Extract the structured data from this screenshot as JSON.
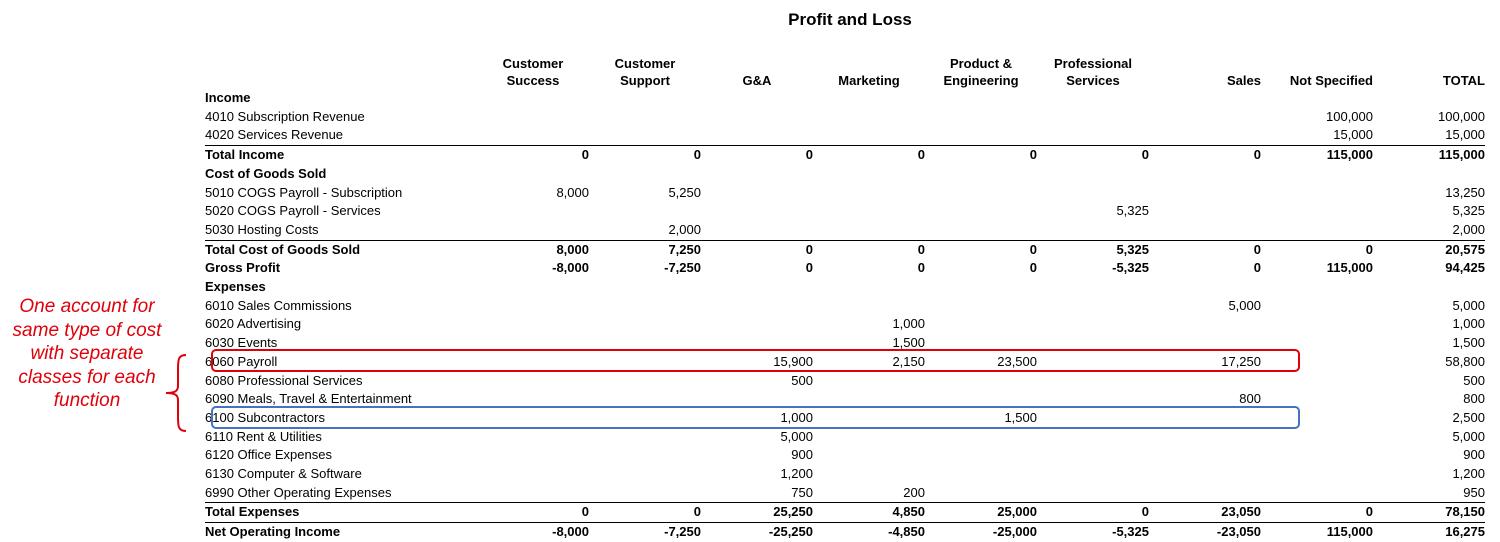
{
  "title": "Profit and Loss",
  "columns": [
    "Customer\nSuccess",
    "Customer\nSupport",
    "G&A",
    "Marketing",
    "Product &\nEngineering",
    "Professional\nServices",
    "Sales",
    "Not Specified",
    "TOTAL"
  ],
  "rows": [
    {
      "label": "Income",
      "type": "section",
      "values": [
        "",
        "",
        "",
        "",
        "",
        "",
        "",
        "",
        ""
      ]
    },
    {
      "label": "4010 Subscription Revenue",
      "type": "item",
      "values": [
        "",
        "",
        "",
        "",
        "",
        "",
        "",
        "100,000",
        "100,000"
      ]
    },
    {
      "label": "4020 Services Revenue",
      "type": "item",
      "values": [
        "",
        "",
        "",
        "",
        "",
        "",
        "",
        "15,000",
        "15,000"
      ]
    },
    {
      "label": "Total Income",
      "type": "total",
      "values": [
        "0",
        "0",
        "0",
        "0",
        "0",
        "0",
        "0",
        "115,000",
        "115,000"
      ]
    },
    {
      "label": "Cost of Goods Sold",
      "type": "section",
      "values": [
        "",
        "",
        "",
        "",
        "",
        "",
        "",
        "",
        ""
      ]
    },
    {
      "label": "5010 COGS Payroll - Subscription",
      "type": "item",
      "values": [
        "8,000",
        "5,250",
        "",
        "",
        "",
        "",
        "",
        "",
        "13,250"
      ]
    },
    {
      "label": "5020 COGS Payroll - Services",
      "type": "item",
      "values": [
        "",
        "",
        "",
        "",
        "",
        "5,325",
        "",
        "",
        "5,325"
      ]
    },
    {
      "label": "5030 Hosting Costs",
      "type": "item",
      "values": [
        "",
        "2,000",
        "",
        "",
        "",
        "",
        "",
        "",
        "2,000"
      ]
    },
    {
      "label": "Total Cost of Goods Sold",
      "type": "total",
      "values": [
        "8,000",
        "7,250",
        "0",
        "0",
        "0",
        "5,325",
        "0",
        "0",
        "20,575"
      ]
    },
    {
      "label": "Gross Profit",
      "type": "total",
      "values": [
        "-8,000",
        "-7,250",
        "0",
        "0",
        "0",
        "-5,325",
        "0",
        "115,000",
        "94,425"
      ]
    },
    {
      "label": "Expenses",
      "type": "section",
      "values": [
        "",
        "",
        "",
        "",
        "",
        "",
        "",
        "",
        ""
      ]
    },
    {
      "label": "6010 Sales Commissions",
      "type": "item",
      "values": [
        "",
        "",
        "",
        "",
        "",
        "",
        "5,000",
        "",
        "5,000"
      ]
    },
    {
      "label": "6020 Advertising",
      "type": "item",
      "values": [
        "",
        "",
        "",
        "1,000",
        "",
        "",
        "",
        "",
        "1,000"
      ]
    },
    {
      "label": "6030 Events",
      "type": "item",
      "values": [
        "",
        "",
        "",
        "1,500",
        "",
        "",
        "",
        "",
        "1,500"
      ]
    },
    {
      "label": "6060 Payroll",
      "type": "item",
      "values": [
        "",
        "",
        "15,900",
        "2,150",
        "23,500",
        "",
        "17,250",
        "",
        "58,800"
      ]
    },
    {
      "label": "6080 Professional Services",
      "type": "item",
      "values": [
        "",
        "",
        "500",
        "",
        "",
        "",
        "",
        "",
        "500"
      ]
    },
    {
      "label": "6090 Meals, Travel & Entertainment",
      "type": "item",
      "values": [
        "",
        "",
        "",
        "",
        "",
        "",
        "800",
        "",
        "800"
      ]
    },
    {
      "label": "6100 Subcontractors",
      "type": "item",
      "values": [
        "",
        "",
        "1,000",
        "",
        "1,500",
        "",
        "",
        "",
        "2,500"
      ]
    },
    {
      "label": "6110 Rent & Utilities",
      "type": "item",
      "values": [
        "",
        "",
        "5,000",
        "",
        "",
        "",
        "",
        "",
        "5,000"
      ]
    },
    {
      "label": "6120 Office Expenses",
      "type": "item",
      "values": [
        "",
        "",
        "900",
        "",
        "",
        "",
        "",
        "",
        "900"
      ]
    },
    {
      "label": "6130 Computer & Software",
      "type": "item",
      "values": [
        "",
        "",
        "1,200",
        "",
        "",
        "",
        "",
        "",
        "1,200"
      ]
    },
    {
      "label": "6990 Other Operating Expenses",
      "type": "item",
      "values": [
        "",
        "",
        "750",
        "200",
        "",
        "",
        "",
        "",
        "950"
      ]
    },
    {
      "label": "Total Expenses",
      "type": "total",
      "values": [
        "0",
        "0",
        "25,250",
        "4,850",
        "25,000",
        "0",
        "23,050",
        "0",
        "78,150"
      ]
    },
    {
      "label": "Net Operating Income",
      "type": "total",
      "values": [
        "-8,000",
        "-7,250",
        "-25,250",
        "-4,850",
        "-25,000",
        "-5,325",
        "-23,050",
        "115,000",
        "16,275"
      ]
    }
  ],
  "annotation": "One account for same type of cost with separate classes for each function",
  "colors": {
    "highlight_payroll": "#e0000b",
    "highlight_subcontractors": "#4472c4",
    "annotation_text": "#e0000b"
  }
}
